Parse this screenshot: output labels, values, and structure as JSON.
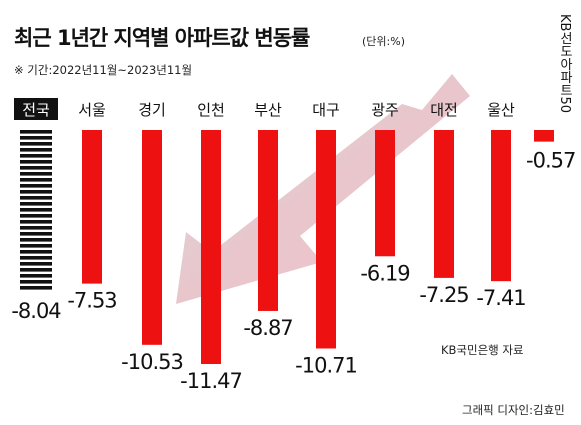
{
  "chart_data": {
    "type": "bar",
    "title": "최근 1년간 지역별 아파트값 변동률",
    "unit": "(단위:%)",
    "period": "※ 기간:2022년11월~2023년11월",
    "categories": [
      "전국",
      "서울",
      "경기",
      "인천",
      "부산",
      "대구",
      "광주",
      "대전",
      "울산",
      "KB선도아파트50"
    ],
    "values": [
      -8.04,
      -7.53,
      -10.53,
      -11.47,
      -8.87,
      -10.71,
      -6.19,
      -7.25,
      -7.41,
      -0.57
    ],
    "value_labels": [
      "-8.04",
      "-7.53",
      "-10.53",
      "-11.47",
      "-8.87",
      "-10.71",
      "-6.19",
      "-7.25",
      "-7.41",
      "-0.57"
    ],
    "ylim": [
      -12,
      0
    ],
    "grid": false,
    "legend": "none",
    "colors": {
      "bar": "#ee1111",
      "highlight_bar": "#111111",
      "highlight_label_bg": "#111111",
      "highlight_label_text": "#ffffff",
      "arrow": "#e6a3ad"
    }
  },
  "source": "KB국민은행 자료",
  "credit": "그래픽 디자인:김효민",
  "icons": {
    "arrow": "downward-trend-arrow"
  }
}
